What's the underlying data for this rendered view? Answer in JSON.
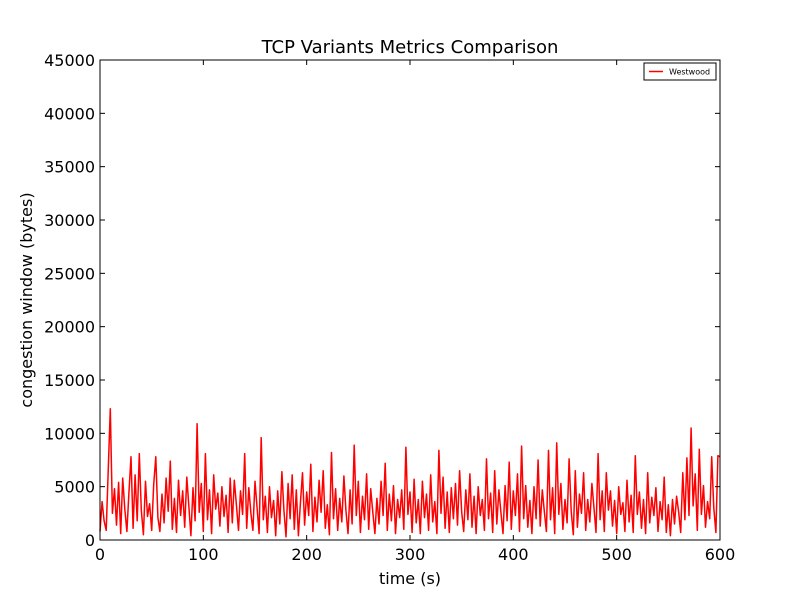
{
  "chart_data": {
    "type": "line",
    "title": "TCP Variants Metrics Comparison",
    "xlabel": "time (s)",
    "ylabel": "congestion window (bytes)",
    "xlim": [
      0,
      600
    ],
    "ylim": [
      0,
      45000
    ],
    "xticks": [
      0,
      100,
      200,
      300,
      400,
      500,
      600
    ],
    "yticks": [
      0,
      5000,
      10000,
      15000,
      20000,
      25000,
      30000,
      35000,
      40000,
      45000
    ],
    "grid": false,
    "legend_position": "top-right",
    "series": [
      {
        "name": "Westwood",
        "color": "#ff0000",
        "points": [
          [
            0,
            800
          ],
          [
            2,
            3600
          ],
          [
            4,
            1800
          ],
          [
            6,
            900
          ],
          [
            10,
            12300
          ],
          [
            12,
            2500
          ],
          [
            14,
            4800
          ],
          [
            16,
            1400
          ],
          [
            18,
            5400
          ],
          [
            20,
            600
          ],
          [
            22,
            5800
          ],
          [
            24,
            2900
          ],
          [
            26,
            800
          ],
          [
            28,
            4400
          ],
          [
            30,
            7800
          ],
          [
            32,
            1100
          ],
          [
            34,
            6100
          ],
          [
            36,
            1800
          ],
          [
            38,
            8100
          ],
          [
            40,
            2800
          ],
          [
            42,
            500
          ],
          [
            44,
            5500
          ],
          [
            46,
            2200
          ],
          [
            48,
            3400
          ],
          [
            50,
            900
          ],
          [
            52,
            5200
          ],
          [
            54,
            7800
          ],
          [
            56,
            2100
          ],
          [
            58,
            800
          ],
          [
            60,
            4300
          ],
          [
            62,
            1600
          ],
          [
            64,
            5800
          ],
          [
            66,
            2700
          ],
          [
            68,
            7400
          ],
          [
            70,
            1000
          ],
          [
            72,
            3900
          ],
          [
            74,
            700
          ],
          [
            76,
            5600
          ],
          [
            78,
            2300
          ],
          [
            80,
            4600
          ],
          [
            82,
            1200
          ],
          [
            84,
            5900
          ],
          [
            86,
            3100
          ],
          [
            88,
            400
          ],
          [
            90,
            4900
          ],
          [
            92,
            1800
          ],
          [
            94,
            10900
          ],
          [
            96,
            2600
          ],
          [
            98,
            5300
          ],
          [
            100,
            800
          ],
          [
            102,
            8100
          ],
          [
            104,
            1900
          ],
          [
            106,
            4700
          ],
          [
            108,
            600
          ],
          [
            110,
            6100
          ],
          [
            112,
            2900
          ],
          [
            114,
            4400
          ],
          [
            116,
            1300
          ],
          [
            118,
            5000
          ],
          [
            120,
            2200
          ],
          [
            122,
            4200
          ],
          [
            124,
            700
          ],
          [
            126,
            5800
          ],
          [
            128,
            1600
          ],
          [
            130,
            5600
          ],
          [
            132,
            3300
          ],
          [
            134,
            900
          ],
          [
            136,
            4600
          ],
          [
            138,
            2400
          ],
          [
            140,
            8100
          ],
          [
            142,
            1100
          ],
          [
            144,
            4900
          ],
          [
            146,
            2500
          ],
          [
            148,
            900
          ],
          [
            150,
            5500
          ],
          [
            152,
            3000
          ],
          [
            154,
            600
          ],
          [
            156,
            9600
          ],
          [
            158,
            1900
          ],
          [
            160,
            4100
          ],
          [
            162,
            700
          ],
          [
            164,
            5000
          ],
          [
            166,
            2100
          ],
          [
            168,
            3700
          ],
          [
            170,
            400
          ],
          [
            172,
            4600
          ],
          [
            174,
            1500
          ],
          [
            176,
            6400
          ],
          [
            178,
            2800
          ],
          [
            180,
            300
          ],
          [
            182,
            5300
          ],
          [
            184,
            2000
          ],
          [
            186,
            6100
          ],
          [
            188,
            1000
          ],
          [
            190,
            4700
          ],
          [
            192,
            400
          ],
          [
            194,
            3600
          ],
          [
            196,
            6300
          ],
          [
            198,
            1400
          ],
          [
            200,
            4500
          ],
          [
            202,
            2300
          ],
          [
            204,
            7100
          ],
          [
            206,
            800
          ],
          [
            208,
            4000
          ],
          [
            210,
            1700
          ],
          [
            212,
            5600
          ],
          [
            214,
            2600
          ],
          [
            216,
            6500
          ],
          [
            218,
            1100
          ],
          [
            220,
            3300
          ],
          [
            222,
            500
          ],
          [
            224,
            8200
          ],
          [
            226,
            2000
          ],
          [
            228,
            4800
          ],
          [
            230,
            900
          ],
          [
            232,
            3900
          ],
          [
            234,
            1700
          ],
          [
            236,
            6000
          ],
          [
            238,
            2800
          ],
          [
            240,
            600
          ],
          [
            242,
            4700
          ],
          [
            244,
            1500
          ],
          [
            246,
            8900
          ],
          [
            248,
            2300
          ],
          [
            250,
            5500
          ],
          [
            252,
            700
          ],
          [
            254,
            4100
          ],
          [
            256,
            1900
          ],
          [
            258,
            6200
          ],
          [
            260,
            1000
          ],
          [
            262,
            4800
          ],
          [
            264,
            2600
          ],
          [
            266,
            600
          ],
          [
            268,
            3900
          ],
          [
            270,
            1500
          ],
          [
            272,
            5500
          ],
          [
            274,
            2300
          ],
          [
            276,
            7200
          ],
          [
            278,
            900
          ],
          [
            280,
            4300
          ],
          [
            282,
            1800
          ],
          [
            284,
            5100
          ],
          [
            286,
            600
          ],
          [
            288,
            3800
          ],
          [
            290,
            2100
          ],
          [
            292,
            4700
          ],
          [
            294,
            1000
          ],
          [
            296,
            8700
          ],
          [
            298,
            2400
          ],
          [
            300,
            4500
          ],
          [
            302,
            700
          ],
          [
            304,
            5700
          ],
          [
            306,
            1600
          ],
          [
            308,
            3800
          ],
          [
            310,
            600
          ],
          [
            312,
            5500
          ],
          [
            314,
            2100
          ],
          [
            316,
            4300
          ],
          [
            318,
            900
          ],
          [
            320,
            6100
          ],
          [
            322,
            1700
          ],
          [
            324,
            3600
          ],
          [
            326,
            600
          ],
          [
            328,
            8400
          ],
          [
            330,
            2500
          ],
          [
            332,
            5900
          ],
          [
            334,
            1100
          ],
          [
            336,
            4500
          ],
          [
            338,
            700
          ],
          [
            340,
            4900
          ],
          [
            342,
            2000
          ],
          [
            344,
            5300
          ],
          [
            346,
            1400
          ],
          [
            348,
            6500
          ],
          [
            350,
            2600
          ],
          [
            352,
            800
          ],
          [
            354,
            4700
          ],
          [
            356,
            1900
          ],
          [
            358,
            6200
          ],
          [
            360,
            1200
          ],
          [
            362,
            4100
          ],
          [
            364,
            600
          ],
          [
            366,
            5000
          ],
          [
            368,
            2300
          ],
          [
            370,
            3800
          ],
          [
            372,
            900
          ],
          [
            374,
            7600
          ],
          [
            376,
            2000
          ],
          [
            378,
            4400
          ],
          [
            380,
            700
          ],
          [
            382,
            6500
          ],
          [
            384,
            1500
          ],
          [
            386,
            4700
          ],
          [
            388,
            2600
          ],
          [
            390,
            600
          ],
          [
            392,
            5100
          ],
          [
            394,
            1800
          ],
          [
            396,
            7300
          ],
          [
            398,
            1000
          ],
          [
            400,
            4600
          ],
          [
            402,
            2300
          ],
          [
            404,
            6200
          ],
          [
            406,
            800
          ],
          [
            408,
            8800
          ],
          [
            410,
            2000
          ],
          [
            412,
            5100
          ],
          [
            414,
            1200
          ],
          [
            416,
            3700
          ],
          [
            418,
            600
          ],
          [
            420,
            5000
          ],
          [
            422,
            2000
          ],
          [
            424,
            7500
          ],
          [
            426,
            1300
          ],
          [
            428,
            4700
          ],
          [
            430,
            2700
          ],
          [
            432,
            800
          ],
          [
            434,
            8400
          ],
          [
            436,
            1900
          ],
          [
            438,
            4900
          ],
          [
            440,
            600
          ],
          [
            442,
            9100
          ],
          [
            444,
            2400
          ],
          [
            446,
            5300
          ],
          [
            448,
            1000
          ],
          [
            450,
            3800
          ],
          [
            452,
            1600
          ],
          [
            454,
            7600
          ],
          [
            456,
            2700
          ],
          [
            458,
            500
          ],
          [
            460,
            6500
          ],
          [
            462,
            1200
          ],
          [
            464,
            4300
          ],
          [
            466,
            2500
          ],
          [
            468,
            6300
          ],
          [
            470,
            900
          ],
          [
            472,
            3800
          ],
          [
            474,
            1700
          ],
          [
            476,
            5300
          ],
          [
            478,
            3100
          ],
          [
            480,
            700
          ],
          [
            482,
            8100
          ],
          [
            484,
            1900
          ],
          [
            486,
            4600
          ],
          [
            488,
            800
          ],
          [
            490,
            6300
          ],
          [
            492,
            2800
          ],
          [
            494,
            4600
          ],
          [
            496,
            1300
          ],
          [
            498,
            3700
          ],
          [
            500,
            600
          ],
          [
            502,
            5000
          ],
          [
            504,
            2400
          ],
          [
            506,
            3500
          ],
          [
            508,
            800
          ],
          [
            510,
            5600
          ],
          [
            512,
            1700
          ],
          [
            514,
            4200
          ],
          [
            516,
            700
          ],
          [
            518,
            7900
          ],
          [
            520,
            2400
          ],
          [
            522,
            4500
          ],
          [
            524,
            1100
          ],
          [
            526,
            3800
          ],
          [
            528,
            600
          ],
          [
            530,
            6300
          ],
          [
            532,
            1600
          ],
          [
            534,
            4000
          ],
          [
            536,
            2300
          ],
          [
            538,
            4900
          ],
          [
            540,
            800
          ],
          [
            542,
            3600
          ],
          [
            544,
            1900
          ],
          [
            546,
            5900
          ],
          [
            548,
            700
          ],
          [
            550,
            3300
          ],
          [
            552,
            400
          ],
          [
            554,
            3800
          ],
          [
            556,
            1500
          ],
          [
            558,
            4100
          ],
          [
            560,
            2600
          ],
          [
            562,
            700
          ],
          [
            564,
            6300
          ],
          [
            566,
            1900
          ],
          [
            568,
            7700
          ],
          [
            570,
            2300
          ],
          [
            572,
            10500
          ],
          [
            574,
            3200
          ],
          [
            576,
            6200
          ],
          [
            578,
            900
          ],
          [
            580,
            8500
          ],
          [
            582,
            2400
          ],
          [
            584,
            5100
          ],
          [
            586,
            1200
          ],
          [
            588,
            3600
          ],
          [
            590,
            2000
          ],
          [
            592,
            7800
          ],
          [
            594,
            3000
          ],
          [
            596,
            700
          ],
          [
            598,
            7900
          ],
          [
            600,
            7800
          ]
        ]
      }
    ]
  }
}
